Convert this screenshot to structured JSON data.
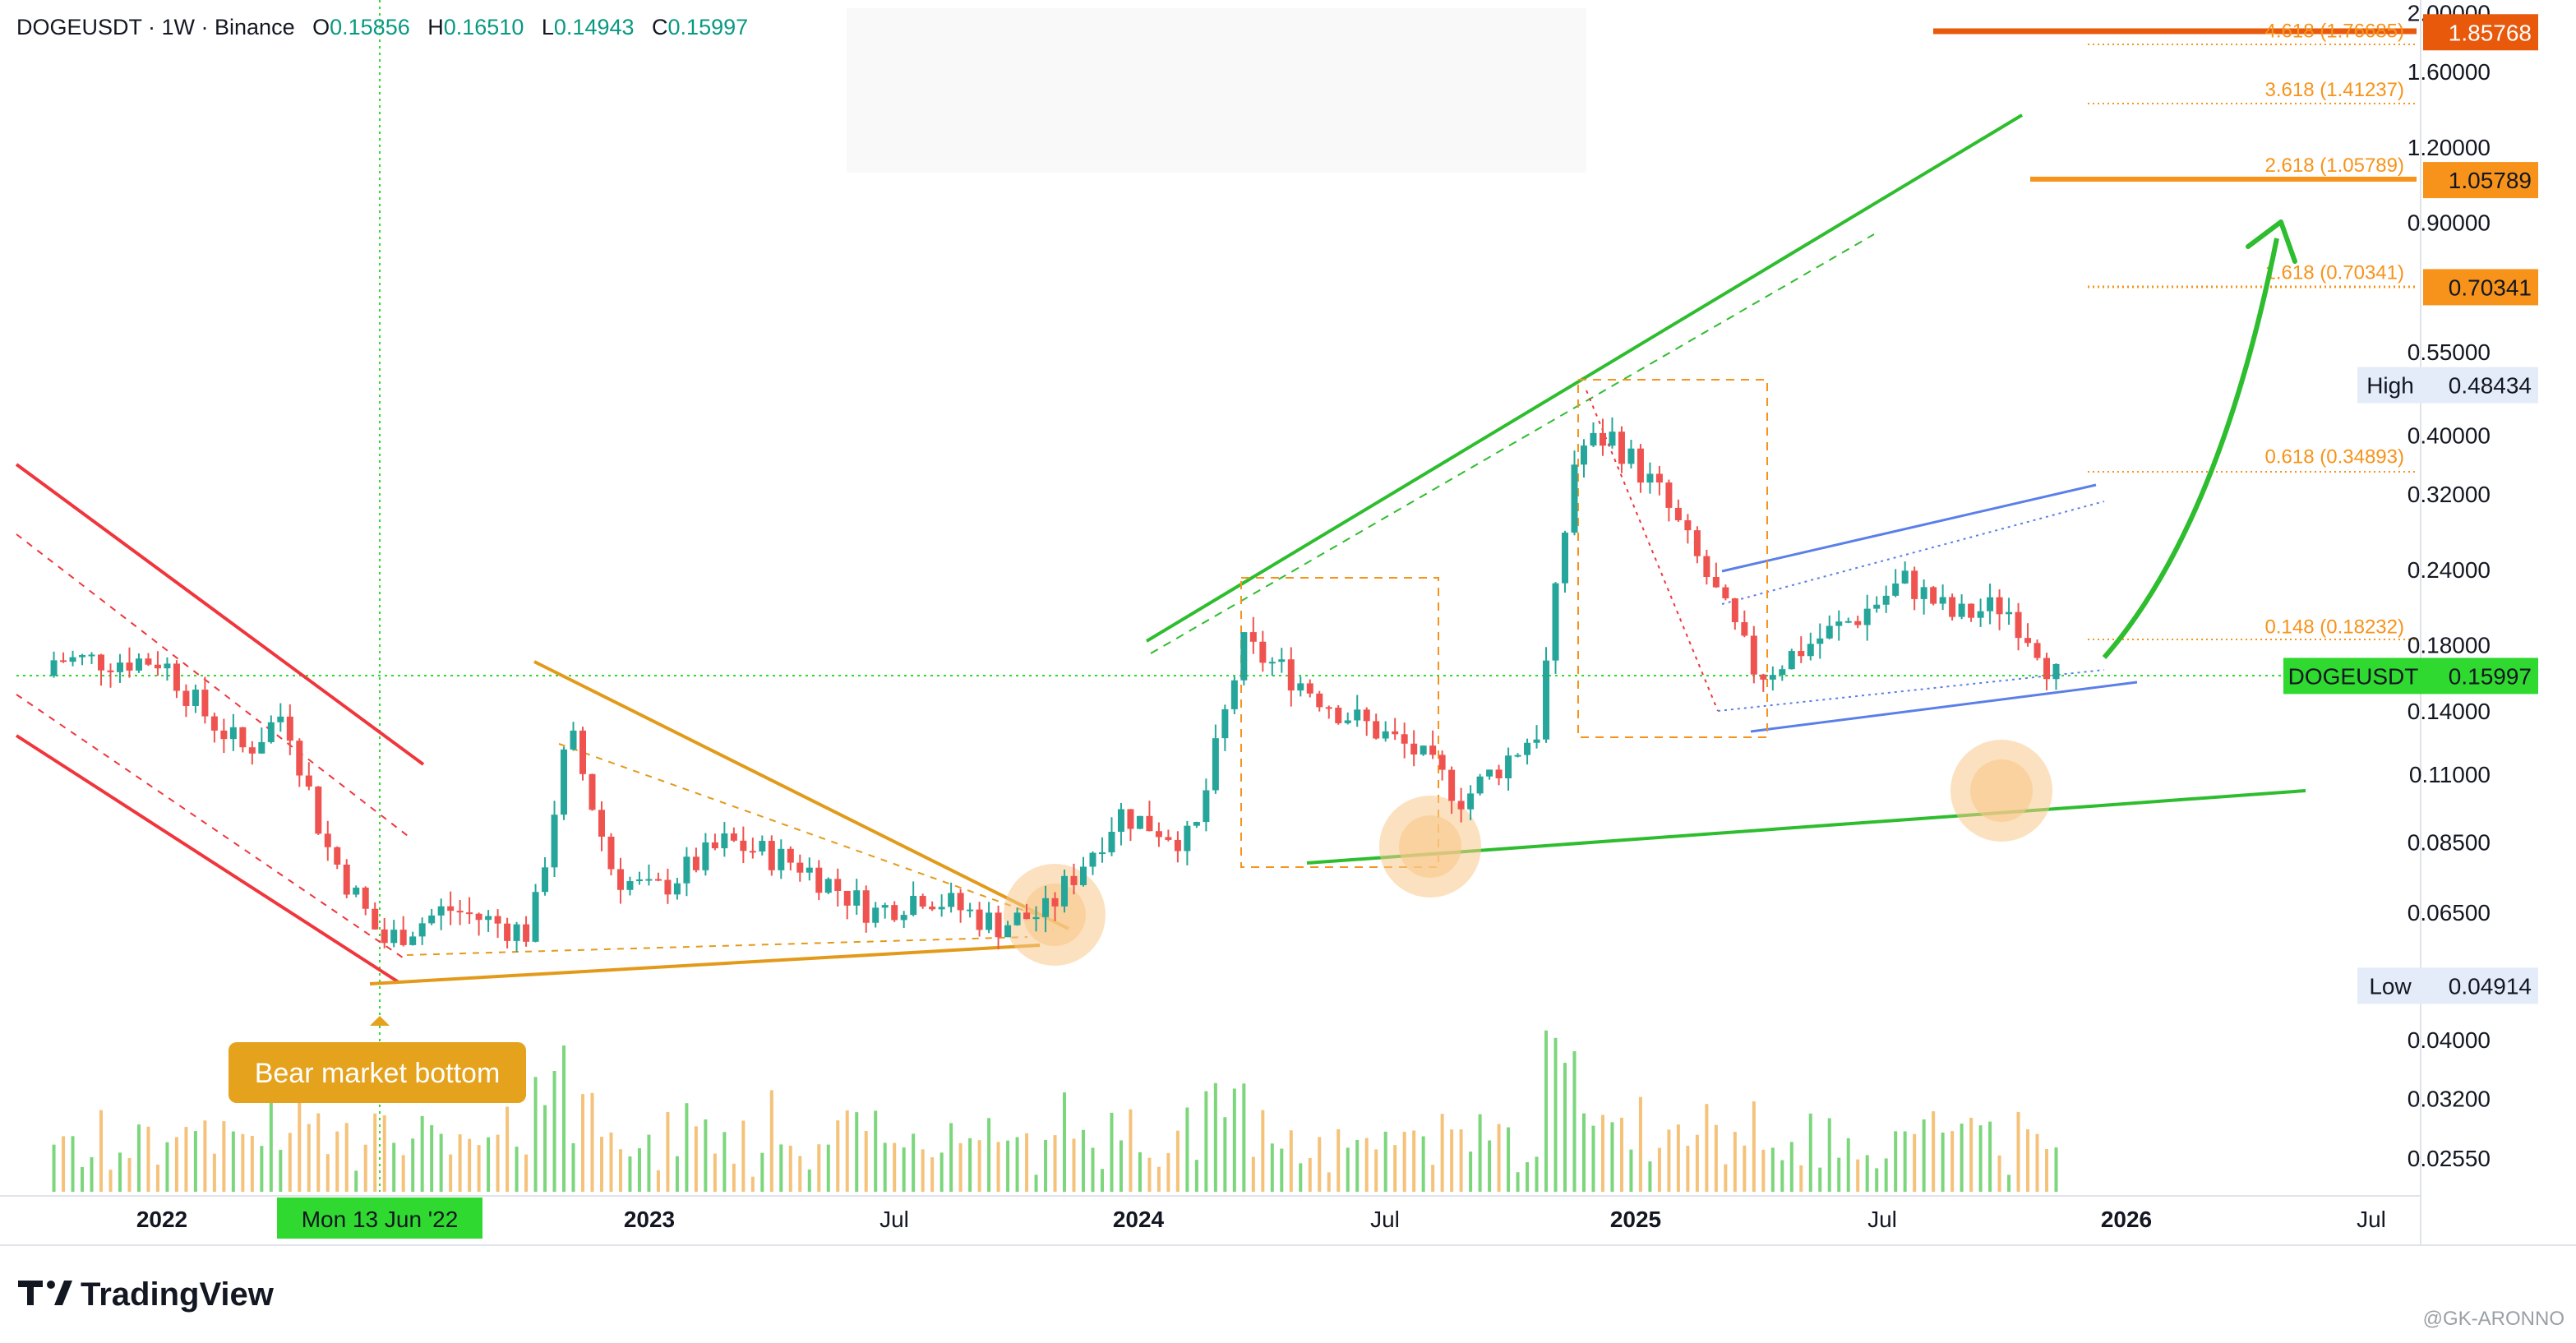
{
  "header": {
    "symbol": "DOGEUSDT · 1W · Binance",
    "o_label": "O",
    "o_value": "0.15856",
    "h_label": "H",
    "h_value": "0.16510",
    "l_label": "L",
    "l_value": "0.14943",
    "c_label": "C",
    "c_value": "0.15997"
  },
  "branding": {
    "name": "TradingView",
    "watermark": "@GK-ARONNO"
  },
  "colors": {
    "up": "#26a69a",
    "down": "#ef5350",
    "green_line": "#2ebd2e",
    "red_line": "#f0363c",
    "orange": "#f7931a",
    "fib_orange_dark": "#e8590c",
    "blue_channel": "#5b7fe8",
    "current_price_bg": "#2fd92f",
    "callout_bg": "#e5a21c"
  },
  "chart_data": {
    "type": "candlestick",
    "symbol": "DOGEUSDT",
    "timeframe": "1W",
    "exchange": "Binance",
    "y_scale": "log",
    "ylim": [
      0.022,
      2.05
    ],
    "x_ticks": [
      "2022",
      "Mon 13 Jun '22",
      "2023",
      "Jul",
      "2024",
      "Jul",
      "2025",
      "Jul",
      "2026",
      "Jul"
    ],
    "y_ticks": [
      "2.00000",
      "1.60000",
      "1.20000",
      "0.90000",
      "0.55000",
      "0.40000",
      "0.32000",
      "0.24000",
      "0.18000",
      "0.14000",
      "0.11000",
      "0.08500",
      "0.06500",
      "0.04000",
      "0.03200",
      "0.02550"
    ],
    "y_tick_values": [
      2.0,
      1.6,
      1.2,
      0.9,
      0.55,
      0.4,
      0.32,
      0.24,
      0.18,
      0.14,
      0.11,
      0.085,
      0.065,
      0.04,
      0.032,
      0.0255
    ],
    "price_tags": [
      {
        "label": "",
        "value": "1.85768",
        "price": 1.85768,
        "style": "fib-dark"
      },
      {
        "label": "",
        "value": "1.05789",
        "price": 1.05789,
        "style": "fib-solid"
      },
      {
        "label": "",
        "value": "0.70341",
        "price": 0.70341,
        "style": "fib-solid"
      },
      {
        "label": "High",
        "value": "0.48434",
        "price": 0.48434,
        "style": "high"
      },
      {
        "label": "DOGEUSDT",
        "value": "0.15997",
        "price": 0.15997,
        "style": "current"
      },
      {
        "label": "Low",
        "value": "0.04914",
        "price": 0.04914,
        "style": "low"
      }
    ],
    "fib_levels": [
      {
        "label": "4.618 (1.76685)",
        "price": 1.76685
      },
      {
        "label": "3.618 (1.41237)",
        "price": 1.41237
      },
      {
        "label": "2.618 (1.05789)",
        "price": 1.05789
      },
      {
        "label": "1.618 (0.70341)",
        "price": 0.70341
      },
      {
        "label": "0.618 (0.34893)",
        "price": 0.34893
      },
      {
        "label": "0.148 (0.18232)",
        "price": 0.18232
      }
    ],
    "ohlc_last": {
      "open": 0.15856,
      "high": 0.1651,
      "low": 0.14943,
      "close": 0.15997
    },
    "weekly_closes_approx": [
      [
        2022.0,
        0.17
      ],
      [
        2022.08,
        0.14
      ],
      [
        2022.17,
        0.12
      ],
      [
        2022.25,
        0.14
      ],
      [
        2022.33,
        0.085
      ],
      [
        2022.45,
        0.058
      ],
      [
        2022.58,
        0.066
      ],
      [
        2022.75,
        0.06
      ],
      [
        2022.83,
        0.13
      ],
      [
        2022.92,
        0.075
      ],
      [
        2023.0,
        0.07
      ],
      [
        2023.15,
        0.085
      ],
      [
        2023.3,
        0.078
      ],
      [
        2023.45,
        0.065
      ],
      [
        2023.55,
        0.07
      ],
      [
        2023.7,
        0.062
      ],
      [
        2023.8,
        0.065
      ],
      [
        2023.95,
        0.095
      ],
      [
        2024.1,
        0.085
      ],
      [
        2024.2,
        0.18
      ],
      [
        2024.3,
        0.16
      ],
      [
        2024.4,
        0.14
      ],
      [
        2024.55,
        0.12
      ],
      [
        2024.65,
        0.1
      ],
      [
        2024.8,
        0.13
      ],
      [
        2024.88,
        0.38
      ],
      [
        2024.95,
        0.4
      ],
      [
        2025.05,
        0.32
      ],
      [
        2025.15,
        0.23
      ],
      [
        2025.25,
        0.16
      ],
      [
        2025.35,
        0.18
      ],
      [
        2025.45,
        0.2
      ],
      [
        2025.55,
        0.23
      ],
      [
        2025.65,
        0.2
      ],
      [
        2025.75,
        0.21
      ],
      [
        2025.82,
        0.18
      ],
      [
        2025.85,
        0.15997
      ]
    ]
  },
  "annotations": {
    "bear_market_bottom": "Bear market bottom"
  }
}
